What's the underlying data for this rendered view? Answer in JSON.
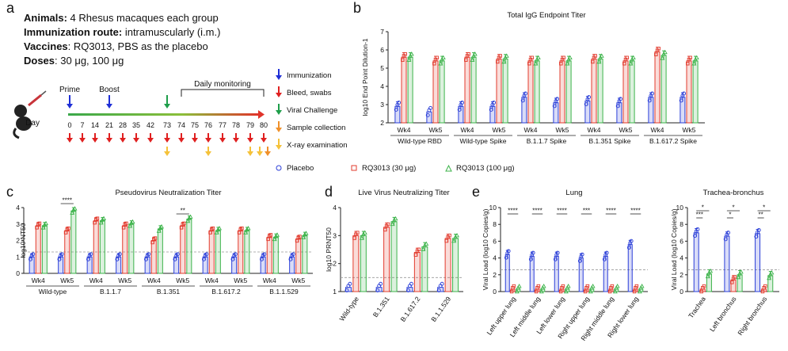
{
  "panel_a": {
    "letter": "a",
    "lines": [
      {
        "label": "Animals:",
        "text": " 4 Rhesus macaques each group"
      },
      {
        "label": "Immunization route:",
        "text": " intramuscularly (i.m.)"
      },
      {
        "label": "Vaccines",
        "text": ": RQ3013, PBS as the placebo"
      },
      {
        "label": "Doses",
        "text": ": 30 μg, 100 μg"
      }
    ],
    "timeline": {
      "day_label": "Day",
      "days": [
        "0",
        "7",
        "14",
        "21",
        "28",
        "35",
        "42",
        "73",
        "74",
        "75",
        "76",
        "77",
        "78",
        "79",
        "80"
      ],
      "bleed_days": [
        "0",
        "7",
        "14",
        "21",
        "28",
        "35",
        "42",
        "73",
        "74",
        "75",
        "76",
        "77",
        "78",
        "79",
        "80"
      ],
      "xray_days": [
        "73",
        "76",
        "79",
        "80"
      ],
      "sample_days": [
        "80"
      ],
      "prime_label": "Prime",
      "boost_label": "Boost",
      "monitoring_label": "Daily monitoring",
      "legend": [
        {
          "name": "Immunization",
          "color": "#1f2fd6"
        },
        {
          "name": "Bleed, swabs",
          "color": "#e02020"
        },
        {
          "name": "Viral Challenge",
          "color": "#1e9e4a"
        },
        {
          "name": "Sample collection",
          "color": "#f0902a"
        },
        {
          "name": "X-ray examination",
          "color": "#f5c23a"
        }
      ]
    }
  },
  "legend": {
    "placebo": "Placebo",
    "low": "RQ3013 (30 μg)",
    "high": "RQ3013 (100 μg)",
    "colors": {
      "placebo": "#2b3fd8",
      "low": "#e23b2e",
      "high": "#3cb34a"
    }
  },
  "chart_data": [
    {
      "id": "b",
      "type": "bar",
      "title": "Total IgG Endpoint Titer",
      "ylabel": "log10 End Point Dilution-1",
      "ylim": [
        2,
        7
      ],
      "yticks": [
        "2",
        "3",
        "4",
        "5",
        "6",
        "7"
      ],
      "categories": [
        "Wk4",
        "Wk5",
        "Wk4",
        "Wk5",
        "Wk4",
        "Wk5",
        "Wk4",
        "Wk5",
        "Wk4",
        "Wk5"
      ],
      "groups": [
        "Wild-type RBD",
        "Wild-type Spike",
        "B.1.1.7 Spike",
        "B.1.351 Spike",
        "B.1.617.2 Spike"
      ],
      "series": [
        {
          "name": "Placebo",
          "values": [
            2.9,
            2.6,
            2.9,
            2.9,
            3.4,
            3.1,
            3.2,
            3.1,
            3.4,
            3.4
          ]
        },
        {
          "name": "RQ3013 (30 μg)",
          "values": [
            5.6,
            5.4,
            5.6,
            5.5,
            5.4,
            5.4,
            5.5,
            5.4,
            5.9,
            5.4
          ]
        },
        {
          "name": "RQ3013 (100 μg)",
          "values": [
            5.6,
            5.4,
            5.6,
            5.5,
            5.4,
            5.4,
            5.5,
            5.4,
            5.7,
            5.4
          ]
        }
      ]
    },
    {
      "id": "c",
      "type": "bar",
      "title": "Pseudovirus Neutralization Titer",
      "ylabel": "log10 NT50",
      "ylim": [
        0,
        4
      ],
      "yticks": [
        "0",
        "1",
        "2",
        "3",
        "4"
      ],
      "categories": [
        "Wk4",
        "Wk5",
        "Wk4",
        "Wk5",
        "Wk4",
        "Wk5",
        "Wk4",
        "Wk5",
        "Wk4",
        "Wk5"
      ],
      "groups": [
        "Wild-type",
        "B.1.1.7",
        "B.1.351",
        "B.1.617.2",
        "B.1.1.529"
      ],
      "series": [
        {
          "name": "Placebo",
          "values": [
            1,
            1,
            1,
            1,
            1,
            1,
            1,
            1,
            1,
            1
          ]
        },
        {
          "name": "RQ3013 (30 μg)",
          "values": [
            2.9,
            2.6,
            3.2,
            2.9,
            2.0,
            2.9,
            2.6,
            2.6,
            2.2,
            2.1
          ]
        },
        {
          "name": "RQ3013 (100 μg)",
          "values": [
            2.9,
            3.8,
            3.2,
            3.0,
            2.7,
            3.3,
            2.6,
            2.6,
            2.2,
            2.3
          ]
        }
      ],
      "annotations": [
        {
          "category_index": 1,
          "text": "****"
        },
        {
          "category_index": 5,
          "text": "**"
        }
      ],
      "dashed_line": 1.3
    },
    {
      "id": "d",
      "type": "bar",
      "title": "Live Virus Neutralizing Titer",
      "ylabel": "log10 PRNT50",
      "ylim": [
        1,
        4
      ],
      "yticks": [
        "1",
        "2",
        "3",
        "4"
      ],
      "categories": [
        "Wild-type",
        "B.1.351",
        "B.1.617.2",
        "B.1.1.529"
      ],
      "series": [
        {
          "name": "Placebo",
          "values": [
            1.15,
            1.15,
            1.15,
            1.15
          ]
        },
        {
          "name": "RQ3013 (30 μg)",
          "values": [
            3.0,
            3.3,
            2.4,
            2.9
          ]
        },
        {
          "name": "RQ3013 (100 μg)",
          "values": [
            3.0,
            3.5,
            2.6,
            2.9
          ]
        }
      ],
      "dashed_line": 1.5
    },
    {
      "id": "e1",
      "type": "bar",
      "title": "Lung",
      "ylabel": "Viral Load (log10 Copies/g)",
      "ylim": [
        0,
        10
      ],
      "yticks": [
        "0",
        "2",
        "4",
        "6",
        "8",
        "10"
      ],
      "categories": [
        "Left upper lung",
        "Left middle lung",
        "Left lower lung",
        "Right upper lung",
        "Right middle lung",
        "Right lower lung"
      ],
      "series": [
        {
          "name": "Placebo",
          "values": [
            4.4,
            4.2,
            4.2,
            4.0,
            4.2,
            5.6
          ]
        },
        {
          "name": "RQ3013 (30 μg)",
          "values": [
            0.3,
            0.3,
            0.3,
            0.3,
            0.3,
            0.3
          ]
        },
        {
          "name": "RQ3013 (100 μg)",
          "values": [
            0.3,
            0.3,
            0.3,
            0.3,
            0.3,
            0.3
          ]
        }
      ],
      "annotations": [
        {
          "category_index": 0,
          "text": "****"
        },
        {
          "category_index": 1,
          "text": "****"
        },
        {
          "category_index": 2,
          "text": "****"
        },
        {
          "category_index": 3,
          "text": "***"
        },
        {
          "category_index": 4,
          "text": "****"
        },
        {
          "category_index": 5,
          "text": "****"
        }
      ],
      "dashed_line": 2.6
    },
    {
      "id": "e2",
      "type": "bar",
      "title": "Trachea-bronchus",
      "ylabel": "Viral Load (log10 Copies/g)",
      "ylim": [
        0,
        10
      ],
      "yticks": [
        "0",
        "2",
        "4",
        "6",
        "8",
        "10"
      ],
      "categories": [
        "Trachea",
        "Left bronchus",
        "Right bronchus"
      ],
      "series": [
        {
          "name": "Placebo",
          "values": [
            7.0,
            6.6,
            6.9
          ]
        },
        {
          "name": "RQ3013 (30 μg)",
          "values": [
            0.3,
            1.4,
            0.3
          ]
        },
        {
          "name": "RQ3013 (100 μg)",
          "values": [
            2.1,
            2.0,
            1.9
          ]
        }
      ],
      "annotations": [
        {
          "text": "***"
        },
        {
          "text": "*"
        },
        {
          "text": "*"
        },
        {
          "text": "*"
        },
        {
          "text": "**"
        },
        {
          "text": "*"
        }
      ],
      "dashed_line": 2.6
    }
  ],
  "panel_letters": {
    "b": "b",
    "c": "c",
    "d": "d",
    "e": "e"
  }
}
